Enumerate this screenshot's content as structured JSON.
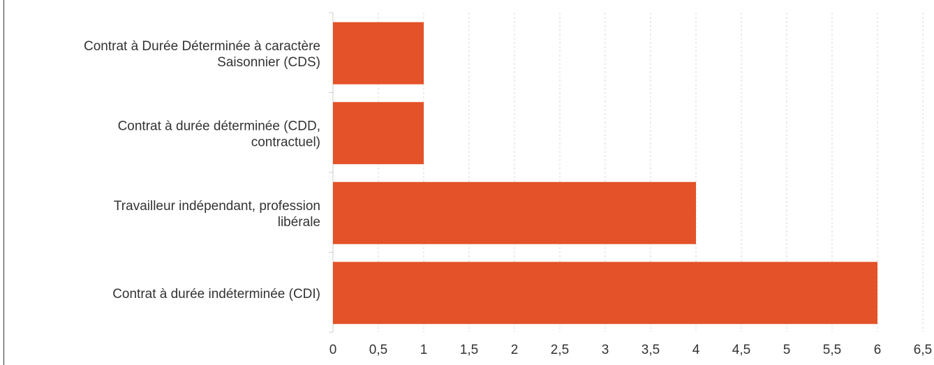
{
  "chart_data": {
    "type": "bar",
    "orientation": "horizontal",
    "categories": [
      [
        "Contrat à Durée Déterminée à caractère",
        "Saisonnier (CDS)"
      ],
      [
        "Contrat à durée déterminée (CDD,",
        "contractuel)"
      ],
      [
        "Travailleur indépendant, profession",
        "libérale"
      ],
      [
        "Contrat à durée indéterminée (CDI)"
      ]
    ],
    "values": [
      1,
      1,
      4,
      6
    ],
    "xlim": [
      0,
      6.5
    ],
    "x_ticks": [
      "0",
      "0,5",
      "1",
      "1,5",
      "2",
      "2,5",
      "3",
      "3,5",
      "4",
      "4,5",
      "5",
      "5,5",
      "6",
      "6,5"
    ],
    "grid": true,
    "bar_color": "#e35228"
  }
}
